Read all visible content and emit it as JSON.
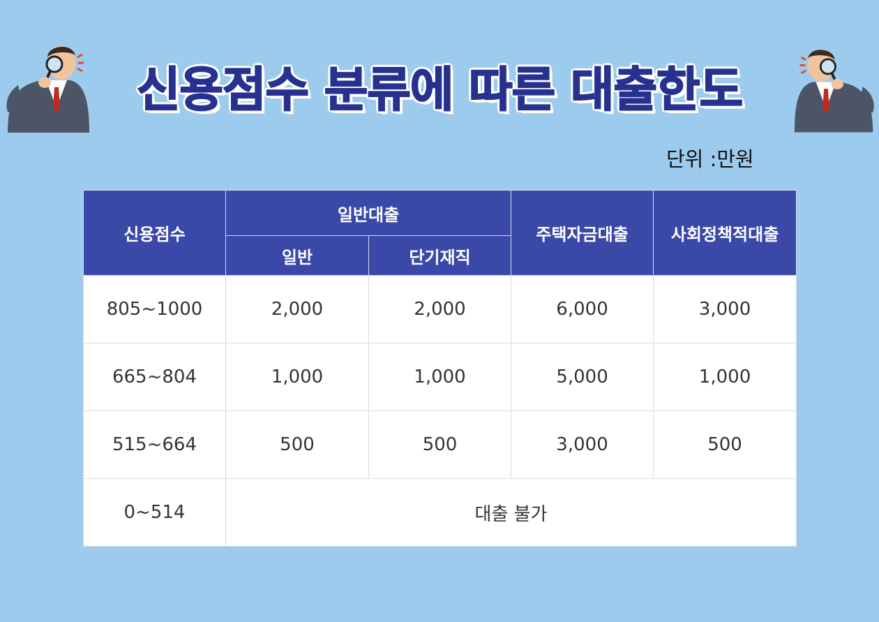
{
  "title": "신용점수 분류에 따른 대출한도",
  "unit_label": "단위 :만원",
  "table": {
    "header": {
      "score": "신용점수",
      "general_loan": "일반대출",
      "general": "일반",
      "short_term": "단기재직",
      "housing": "주택자금대출",
      "social_policy": "사회정책적대출"
    },
    "rows": [
      {
        "score": "805~1000",
        "general": "2,000",
        "short_term": "2,000",
        "housing": "6,000",
        "social_policy": "3,000"
      },
      {
        "score": "665~804",
        "general": "1,000",
        "short_term": "1,000",
        "housing": "5,000",
        "social_policy": "1,000"
      },
      {
        "score": "515~664",
        "general": "500",
        "short_term": "500",
        "housing": "3,000",
        "social_policy": "500"
      }
    ],
    "last_row": {
      "score": "0~514",
      "note": "대출 불가"
    }
  },
  "colors": {
    "background": "#9ccbed",
    "header": "#3a49a8",
    "title": "#27318f"
  },
  "icons": [
    "businessman-magnifier-illustration"
  ]
}
